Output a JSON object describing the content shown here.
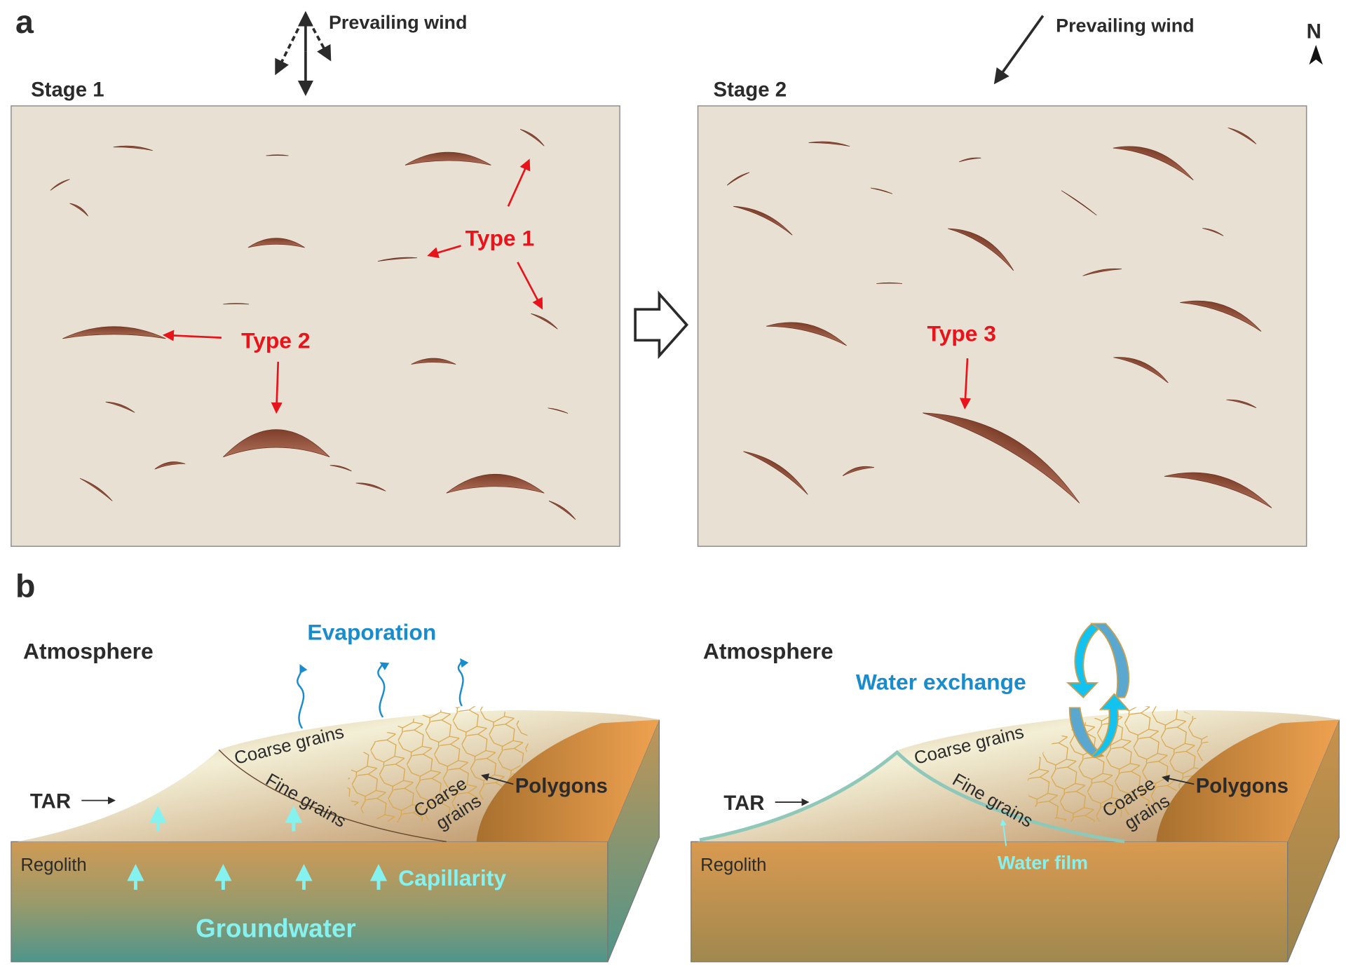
{
  "panel_a": {
    "label": "a",
    "wind_label_stage1": "Prevailing wind",
    "wind_label_stage2": "Prevailing wind",
    "north_label": "N",
    "stage1": {
      "title": "Stage 1",
      "type1_label": "Type 1",
      "type2_label": "Type 2"
    },
    "stage2": {
      "title": "Stage 2",
      "type3_label": "Type 3"
    }
  },
  "panel_b": {
    "label": "b",
    "left": {
      "atmosphere": "Atmosphere",
      "evaporation": "Evaporation",
      "coarse_grains_top": "Coarse grains",
      "fine_grains": "Fine grains",
      "coarse_line1": "Coarse",
      "coarse_line2": "grains",
      "polygons": "Polygons",
      "tar": "TAR",
      "regolith": "Regolith",
      "capillarity": "Capillarity",
      "groundwater": "Groundwater"
    },
    "right": {
      "atmosphere": "Atmosphere",
      "water_exchange": "Water exchange",
      "coarse_grains_top": "Coarse grains",
      "fine_grains": "Fine grains",
      "coarse_line1": "Coarse",
      "coarse_line2": "grains",
      "polygons": "Polygons",
      "tar": "TAR",
      "regolith": "Regolith",
      "water_film": "Water film"
    }
  },
  "colors": {
    "ground": "#e9e0d4",
    "dune": "#8a4a34",
    "annotation_red": "#e8141b",
    "evaporation_blue": "#1a8ccc",
    "water_cyan": "#86f2f0"
  }
}
